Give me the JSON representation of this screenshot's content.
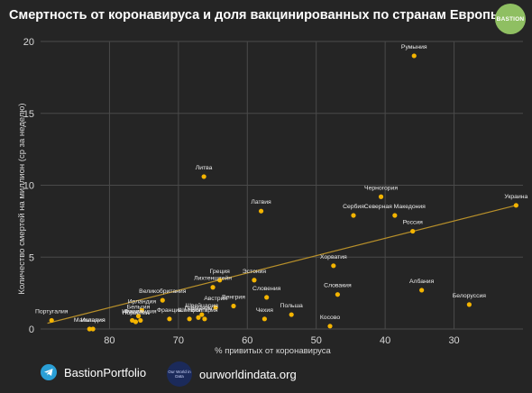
{
  "header": {
    "title": "Смертность от коронавируса и доля вакцинированных по странам Европы",
    "logo_text": "BASTION"
  },
  "footer": {
    "telegram_label": "BastionPortfolio",
    "owid_icon_text": "Our World in Data",
    "owid_label": "ourworldindata.org"
  },
  "colors": {
    "background": "#252525",
    "point": "#f4b400",
    "trendline": "#b8902a",
    "grid": "#4a4a4a"
  },
  "chart_data": {
    "type": "scatter",
    "title": "Смертность от коронавируса и доля вакцинированных по странам Европы",
    "xlabel": "% привитых от коронавируса",
    "ylabel": "Количество смертей на миллион (ср за неделю)",
    "x_reversed": true,
    "xlim": [
      90,
      20
    ],
    "ylim": [
      0,
      20
    ],
    "xticks": [
      80,
      70,
      60,
      50,
      40,
      30
    ],
    "yticks": [
      0,
      5,
      10,
      15,
      20
    ],
    "grid": true,
    "trendline": {
      "x": [
        89,
        21
      ],
      "y": [
        0.4,
        8.6
      ]
    },
    "points": [
      {
        "label": "Румыния",
        "x": 35.8,
        "y": 19.0
      },
      {
        "label": "Литва",
        "x": 66.3,
        "y": 10.6
      },
      {
        "label": "Латвия",
        "x": 58.0,
        "y": 8.2
      },
      {
        "label": "Черногория",
        "x": 40.6,
        "y": 9.2
      },
      {
        "label": "Сербия",
        "x": 44.6,
        "y": 7.9
      },
      {
        "label": "Северная Македония",
        "x": 38.6,
        "y": 7.9
      },
      {
        "label": "Россия",
        "x": 36.0,
        "y": 6.8
      },
      {
        "label": "Украина",
        "x": 21.0,
        "y": 8.6
      },
      {
        "label": "Хорватия",
        "x": 47.5,
        "y": 4.4
      },
      {
        "label": "Словакия",
        "x": 46.9,
        "y": 2.4
      },
      {
        "label": "Албания",
        "x": 34.7,
        "y": 2.7
      },
      {
        "label": "Белоруссия",
        "x": 27.8,
        "y": 1.7
      },
      {
        "label": "Косово",
        "x": 48.0,
        "y": 0.2
      },
      {
        "label": "Польша",
        "x": 53.6,
        "y": 1.0
      },
      {
        "label": "Чехия",
        "x": 57.5,
        "y": 0.7
      },
      {
        "label": "Словения",
        "x": 57.2,
        "y": 2.2
      },
      {
        "label": "Эстония",
        "x": 59.0,
        "y": 3.4
      },
      {
        "label": "Венгрия",
        "x": 62.0,
        "y": 1.6
      },
      {
        "label": "Греция",
        "x": 64.0,
        "y": 3.4
      },
      {
        "label": "Лихтенштейн",
        "x": 65.0,
        "y": 2.9
      },
      {
        "label": "Австрия",
        "x": 64.6,
        "y": 1.5
      },
      {
        "label": "Болгария",
        "x": 66.2,
        "y": 0.7
      },
      {
        "label": "Германия",
        "x": 67.1,
        "y": 0.8
      },
      {
        "label": "Швейцария",
        "x": 66.6,
        "y": 1.0
      },
      {
        "label": "Швеция",
        "x": 68.4,
        "y": 0.7
      },
      {
        "label": "Великобритания",
        "x": 72.3,
        "y": 2.0
      },
      {
        "label": "Ирландия",
        "x": 75.3,
        "y": 1.3
      },
      {
        "label": "Бельгия",
        "x": 75.8,
        "y": 0.9
      },
      {
        "label": "Норвегия",
        "x": 76.2,
        "y": 0.5
      },
      {
        "label": "Финляндия",
        "x": 75.5,
        "y": 0.6
      },
      {
        "label": "Франция",
        "x": 71.3,
        "y": 0.7
      },
      {
        "label": "Италия",
        "x": 76.7,
        "y": 0.6
      },
      {
        "label": "Испания",
        "x": 82.4,
        "y": 0.0
      },
      {
        "label": "Мальтадия",
        "x": 82.9,
        "y": 0.0
      },
      {
        "label": "Португалия",
        "x": 88.4,
        "y": 0.6
      }
    ]
  }
}
